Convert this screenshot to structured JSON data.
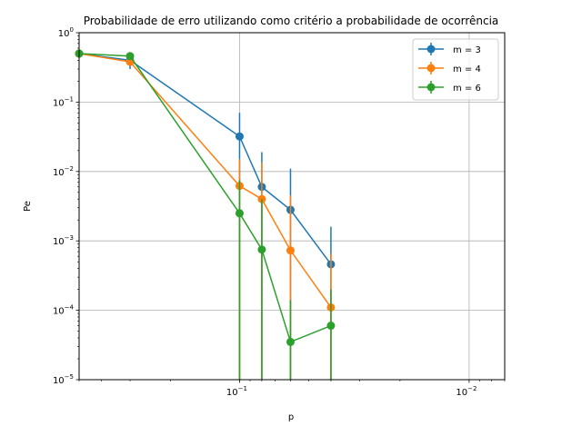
{
  "chart_data": {
    "type": "line",
    "title": "Probabilidade de erro utilizando como critério a probabilidade de ocorrência",
    "xlabel": "p",
    "ylabel": "Pe",
    "xscale": "log",
    "yscale": "log",
    "x_inverted": true,
    "xlim": [
      0.5,
      0.007
    ],
    "ylim": [
      1e-05,
      1
    ],
    "grid": true,
    "legend_position": "top-right",
    "x_ticks": [
      {
        "value": 0.1,
        "base": "10",
        "exp": "−1"
      },
      {
        "value": 0.01,
        "base": "10",
        "exp": "−2"
      }
    ],
    "y_ticks": [
      {
        "value": 1,
        "base": "10",
        "exp": "0"
      },
      {
        "value": 0.1,
        "base": "10",
        "exp": "−1"
      },
      {
        "value": 0.01,
        "base": "10",
        "exp": "−2"
      },
      {
        "value": 0.001,
        "base": "10",
        "exp": "−3"
      },
      {
        "value": 0.0001,
        "base": "10",
        "exp": "−4"
      },
      {
        "value": 1e-05,
        "base": "10",
        "exp": "−5"
      }
    ],
    "x": [
      0.5,
      0.3,
      0.1,
      0.08,
      0.06,
      0.04
    ],
    "series": [
      {
        "name": "m = 3",
        "color": "#1f77b4",
        "values": [
          0.5,
          0.4,
          0.032,
          0.006,
          0.0028,
          0.00046
        ],
        "err_low": [
          0.5,
          0.3,
          1e-05,
          1e-05,
          1e-05,
          1e-05
        ],
        "err_high": [
          0.5,
          0.4,
          0.07,
          0.019,
          0.011,
          0.0016
        ]
      },
      {
        "name": "m = 4",
        "color": "#ff7f0e",
        "values": [
          0.5,
          0.38,
          0.0062,
          0.004,
          0.00073,
          0.00011
        ],
        "err_low": [
          0.5,
          0.36,
          1e-05,
          1e-05,
          1e-05,
          1e-05
        ],
        "err_high": [
          0.5,
          0.4,
          0.015,
          0.0135,
          0.0045,
          0.00065
        ]
      },
      {
        "name": "m = 6",
        "color": "#2ca02c",
        "values": [
          0.5,
          0.46,
          0.0025,
          0.00075,
          3.5e-05,
          6e-05
        ],
        "err_low": [
          0.5,
          0.44,
          1e-05,
          1e-05,
          1e-05,
          1e-05
        ],
        "err_high": [
          0.5,
          0.47,
          0.0075,
          0.004,
          0.00014,
          0.0002
        ]
      }
    ]
  }
}
